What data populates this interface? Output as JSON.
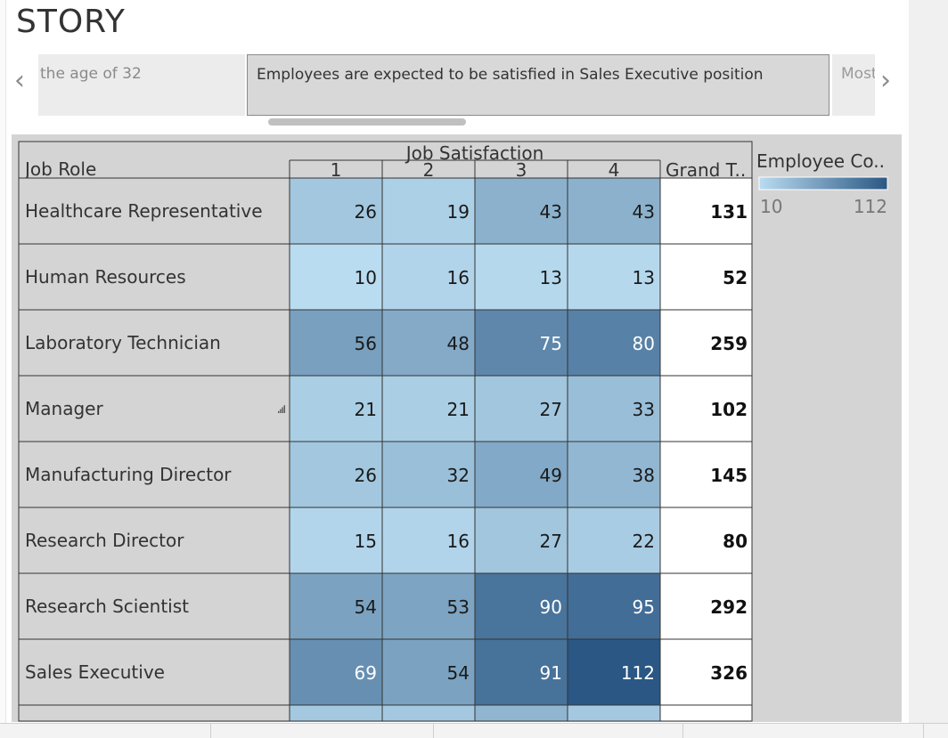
{
  "page": {
    "title": "STORY"
  },
  "story": {
    "prev_label": "the age of 32",
    "current_label": "Employees are expected to be satisfied in Sales Executive position",
    "next_label": "Most",
    "left_arrow": "‹",
    "right_arrow": "›"
  },
  "icons": {
    "nav_left": "chevron-left-icon",
    "nav_right": "chevron-right-icon",
    "sort": "sort-icon"
  },
  "colors": {
    "min": "#b9dcf0",
    "max": "#2a5784"
  },
  "chart_data": {
    "type": "heatmap",
    "row_header": "Job Role",
    "column_group_label": "Job Satisfaction",
    "columns": [
      "1",
      "2",
      "3",
      "4"
    ],
    "total_header": "Grand T..",
    "rows": [
      "Healthcare Representative",
      "Human Resources",
      "Laboratory Technician",
      "Manager",
      "Manufacturing Director",
      "Research Director",
      "Research Scientist",
      "Sales Executive"
    ],
    "values": [
      [
        26,
        19,
        43,
        43
      ],
      [
        10,
        16,
        13,
        13
      ],
      [
        56,
        48,
        75,
        80
      ],
      [
        21,
        21,
        27,
        33
      ],
      [
        26,
        32,
        49,
        38
      ],
      [
        15,
        16,
        27,
        22
      ],
      [
        54,
        53,
        90,
        95
      ],
      [
        69,
        54,
        91,
        112
      ]
    ],
    "totals": [
      131,
      52,
      259,
      102,
      145,
      80,
      292,
      326
    ],
    "legend": {
      "title": "Employee Co..",
      "min": 10,
      "max": 112,
      "min_label": "10",
      "max_label": "112"
    }
  }
}
